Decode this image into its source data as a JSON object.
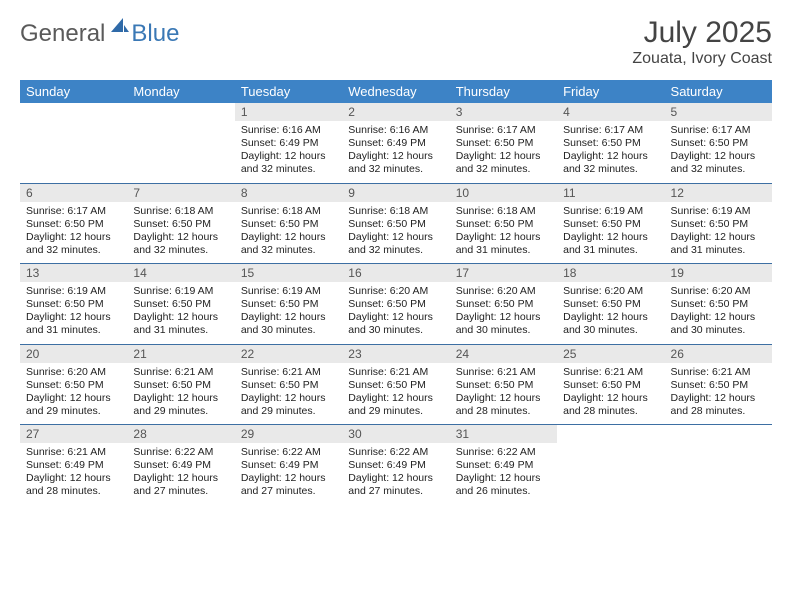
{
  "logo": {
    "general": "General",
    "blue": "Blue"
  },
  "title": "July 2025",
  "location": "Zouata, Ivory Coast",
  "colors": {
    "header_bg": "#3d83c6",
    "header_text": "#ffffff",
    "daynum_bg": "#e9e9e9",
    "row_border": "#3d6fa3",
    "logo_gray": "#5a5a5a",
    "logo_blue": "#3a78b5",
    "body_text": "#222222",
    "page_bg": "#ffffff"
  },
  "fonts": {
    "title_size": 30,
    "location_size": 16,
    "header_cell_size": 13,
    "daynum_size": 12,
    "body_size": 10.5
  },
  "weekday_labels": [
    "Sunday",
    "Monday",
    "Tuesday",
    "Wednesday",
    "Thursday",
    "Friday",
    "Saturday"
  ],
  "weeks": [
    [
      {
        "day": "",
        "sunrise": "",
        "sunset": "",
        "daylight1": "",
        "daylight2": ""
      },
      {
        "day": "",
        "sunrise": "",
        "sunset": "",
        "daylight1": "",
        "daylight2": ""
      },
      {
        "day": "1",
        "sunrise": "Sunrise: 6:16 AM",
        "sunset": "Sunset: 6:49 PM",
        "daylight1": "Daylight: 12 hours",
        "daylight2": "and 32 minutes."
      },
      {
        "day": "2",
        "sunrise": "Sunrise: 6:16 AM",
        "sunset": "Sunset: 6:49 PM",
        "daylight1": "Daylight: 12 hours",
        "daylight2": "and 32 minutes."
      },
      {
        "day": "3",
        "sunrise": "Sunrise: 6:17 AM",
        "sunset": "Sunset: 6:50 PM",
        "daylight1": "Daylight: 12 hours",
        "daylight2": "and 32 minutes."
      },
      {
        "day": "4",
        "sunrise": "Sunrise: 6:17 AM",
        "sunset": "Sunset: 6:50 PM",
        "daylight1": "Daylight: 12 hours",
        "daylight2": "and 32 minutes."
      },
      {
        "day": "5",
        "sunrise": "Sunrise: 6:17 AM",
        "sunset": "Sunset: 6:50 PM",
        "daylight1": "Daylight: 12 hours",
        "daylight2": "and 32 minutes."
      }
    ],
    [
      {
        "day": "6",
        "sunrise": "Sunrise: 6:17 AM",
        "sunset": "Sunset: 6:50 PM",
        "daylight1": "Daylight: 12 hours",
        "daylight2": "and 32 minutes."
      },
      {
        "day": "7",
        "sunrise": "Sunrise: 6:18 AM",
        "sunset": "Sunset: 6:50 PM",
        "daylight1": "Daylight: 12 hours",
        "daylight2": "and 32 minutes."
      },
      {
        "day": "8",
        "sunrise": "Sunrise: 6:18 AM",
        "sunset": "Sunset: 6:50 PM",
        "daylight1": "Daylight: 12 hours",
        "daylight2": "and 32 minutes."
      },
      {
        "day": "9",
        "sunrise": "Sunrise: 6:18 AM",
        "sunset": "Sunset: 6:50 PM",
        "daylight1": "Daylight: 12 hours",
        "daylight2": "and 32 minutes."
      },
      {
        "day": "10",
        "sunrise": "Sunrise: 6:18 AM",
        "sunset": "Sunset: 6:50 PM",
        "daylight1": "Daylight: 12 hours",
        "daylight2": "and 31 minutes."
      },
      {
        "day": "11",
        "sunrise": "Sunrise: 6:19 AM",
        "sunset": "Sunset: 6:50 PM",
        "daylight1": "Daylight: 12 hours",
        "daylight2": "and 31 minutes."
      },
      {
        "day": "12",
        "sunrise": "Sunrise: 6:19 AM",
        "sunset": "Sunset: 6:50 PM",
        "daylight1": "Daylight: 12 hours",
        "daylight2": "and 31 minutes."
      }
    ],
    [
      {
        "day": "13",
        "sunrise": "Sunrise: 6:19 AM",
        "sunset": "Sunset: 6:50 PM",
        "daylight1": "Daylight: 12 hours",
        "daylight2": "and 31 minutes."
      },
      {
        "day": "14",
        "sunrise": "Sunrise: 6:19 AM",
        "sunset": "Sunset: 6:50 PM",
        "daylight1": "Daylight: 12 hours",
        "daylight2": "and 31 minutes."
      },
      {
        "day": "15",
        "sunrise": "Sunrise: 6:19 AM",
        "sunset": "Sunset: 6:50 PM",
        "daylight1": "Daylight: 12 hours",
        "daylight2": "and 30 minutes."
      },
      {
        "day": "16",
        "sunrise": "Sunrise: 6:20 AM",
        "sunset": "Sunset: 6:50 PM",
        "daylight1": "Daylight: 12 hours",
        "daylight2": "and 30 minutes."
      },
      {
        "day": "17",
        "sunrise": "Sunrise: 6:20 AM",
        "sunset": "Sunset: 6:50 PM",
        "daylight1": "Daylight: 12 hours",
        "daylight2": "and 30 minutes."
      },
      {
        "day": "18",
        "sunrise": "Sunrise: 6:20 AM",
        "sunset": "Sunset: 6:50 PM",
        "daylight1": "Daylight: 12 hours",
        "daylight2": "and 30 minutes."
      },
      {
        "day": "19",
        "sunrise": "Sunrise: 6:20 AM",
        "sunset": "Sunset: 6:50 PM",
        "daylight1": "Daylight: 12 hours",
        "daylight2": "and 30 minutes."
      }
    ],
    [
      {
        "day": "20",
        "sunrise": "Sunrise: 6:20 AM",
        "sunset": "Sunset: 6:50 PM",
        "daylight1": "Daylight: 12 hours",
        "daylight2": "and 29 minutes."
      },
      {
        "day": "21",
        "sunrise": "Sunrise: 6:21 AM",
        "sunset": "Sunset: 6:50 PM",
        "daylight1": "Daylight: 12 hours",
        "daylight2": "and 29 minutes."
      },
      {
        "day": "22",
        "sunrise": "Sunrise: 6:21 AM",
        "sunset": "Sunset: 6:50 PM",
        "daylight1": "Daylight: 12 hours",
        "daylight2": "and 29 minutes."
      },
      {
        "day": "23",
        "sunrise": "Sunrise: 6:21 AM",
        "sunset": "Sunset: 6:50 PM",
        "daylight1": "Daylight: 12 hours",
        "daylight2": "and 29 minutes."
      },
      {
        "day": "24",
        "sunrise": "Sunrise: 6:21 AM",
        "sunset": "Sunset: 6:50 PM",
        "daylight1": "Daylight: 12 hours",
        "daylight2": "and 28 minutes."
      },
      {
        "day": "25",
        "sunrise": "Sunrise: 6:21 AM",
        "sunset": "Sunset: 6:50 PM",
        "daylight1": "Daylight: 12 hours",
        "daylight2": "and 28 minutes."
      },
      {
        "day": "26",
        "sunrise": "Sunrise: 6:21 AM",
        "sunset": "Sunset: 6:50 PM",
        "daylight1": "Daylight: 12 hours",
        "daylight2": "and 28 minutes."
      }
    ],
    [
      {
        "day": "27",
        "sunrise": "Sunrise: 6:21 AM",
        "sunset": "Sunset: 6:49 PM",
        "daylight1": "Daylight: 12 hours",
        "daylight2": "and 28 minutes."
      },
      {
        "day": "28",
        "sunrise": "Sunrise: 6:22 AM",
        "sunset": "Sunset: 6:49 PM",
        "daylight1": "Daylight: 12 hours",
        "daylight2": "and 27 minutes."
      },
      {
        "day": "29",
        "sunrise": "Sunrise: 6:22 AM",
        "sunset": "Sunset: 6:49 PM",
        "daylight1": "Daylight: 12 hours",
        "daylight2": "and 27 minutes."
      },
      {
        "day": "30",
        "sunrise": "Sunrise: 6:22 AM",
        "sunset": "Sunset: 6:49 PM",
        "daylight1": "Daylight: 12 hours",
        "daylight2": "and 27 minutes."
      },
      {
        "day": "31",
        "sunrise": "Sunrise: 6:22 AM",
        "sunset": "Sunset: 6:49 PM",
        "daylight1": "Daylight: 12 hours",
        "daylight2": "and 26 minutes."
      },
      {
        "day": "",
        "sunrise": "",
        "sunset": "",
        "daylight1": "",
        "daylight2": ""
      },
      {
        "day": "",
        "sunrise": "",
        "sunset": "",
        "daylight1": "",
        "daylight2": ""
      }
    ]
  ]
}
